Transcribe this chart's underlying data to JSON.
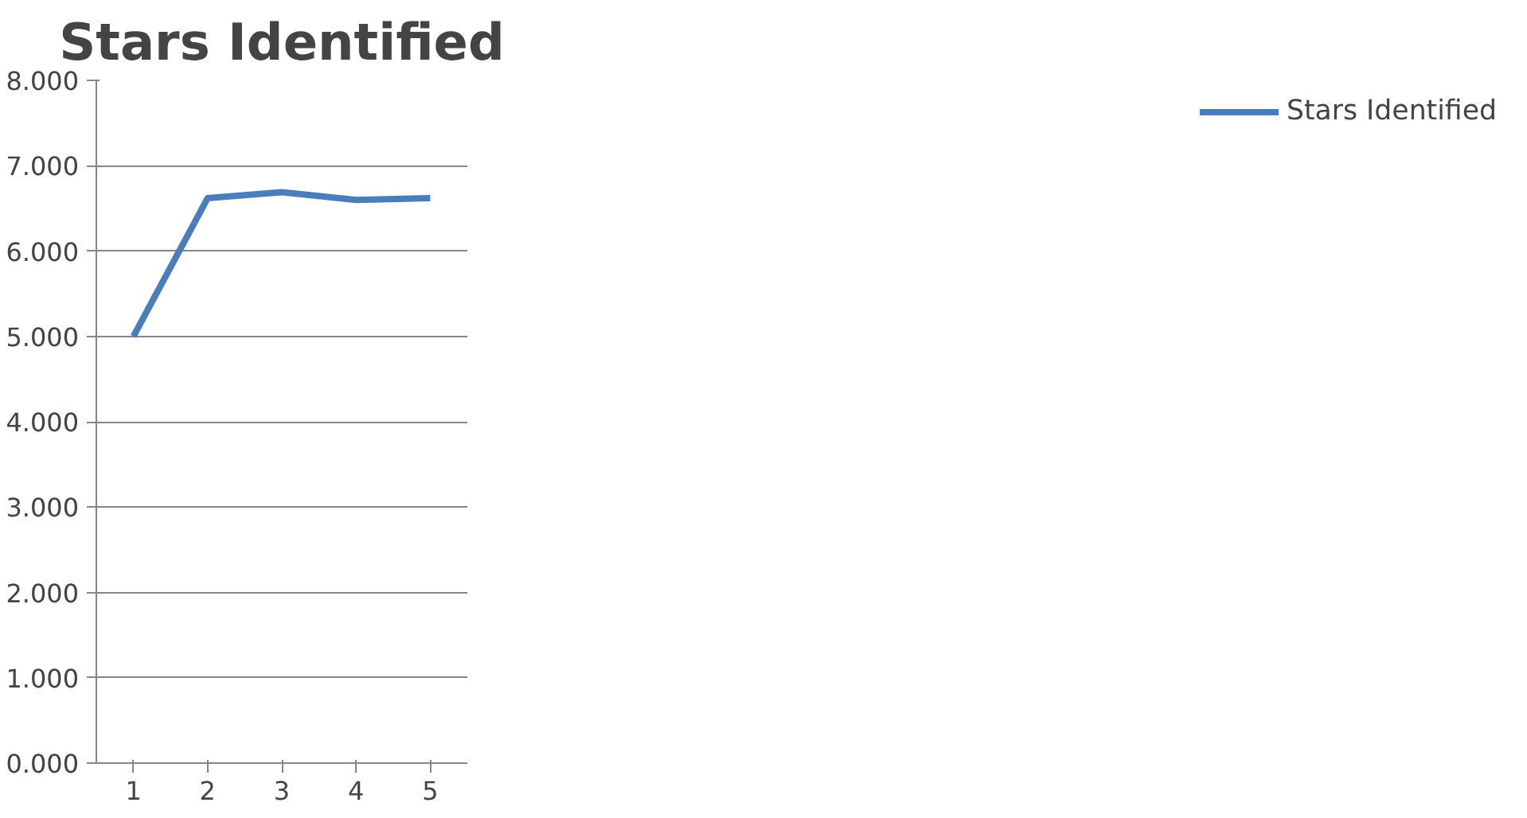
{
  "chart_data": {
    "type": "line",
    "title": "Stars Identified",
    "categories": [
      "1",
      "2",
      "3",
      "4",
      "5"
    ],
    "series": [
      {
        "name": "Stars Identified",
        "color": "#4a7ebb",
        "values": [
          5.0,
          6.62,
          6.69,
          6.6,
          6.62
        ]
      }
    ],
    "ylim": [
      0,
      8
    ],
    "yticks": [
      {
        "value": 0,
        "label": "0.000"
      },
      {
        "value": 1,
        "label": "1.000"
      },
      {
        "value": 2,
        "label": "2.000"
      },
      {
        "value": 3,
        "label": "3.000"
      },
      {
        "value": 4,
        "label": "4.000"
      },
      {
        "value": 5,
        "label": "5.000"
      },
      {
        "value": 6,
        "label": "6.000"
      },
      {
        "value": 7,
        "label": "7.000"
      },
      {
        "value": 8,
        "label": "8.000"
      }
    ],
    "grid": "y",
    "legend": "right",
    "marker": "none",
    "line_style": "solid"
  }
}
